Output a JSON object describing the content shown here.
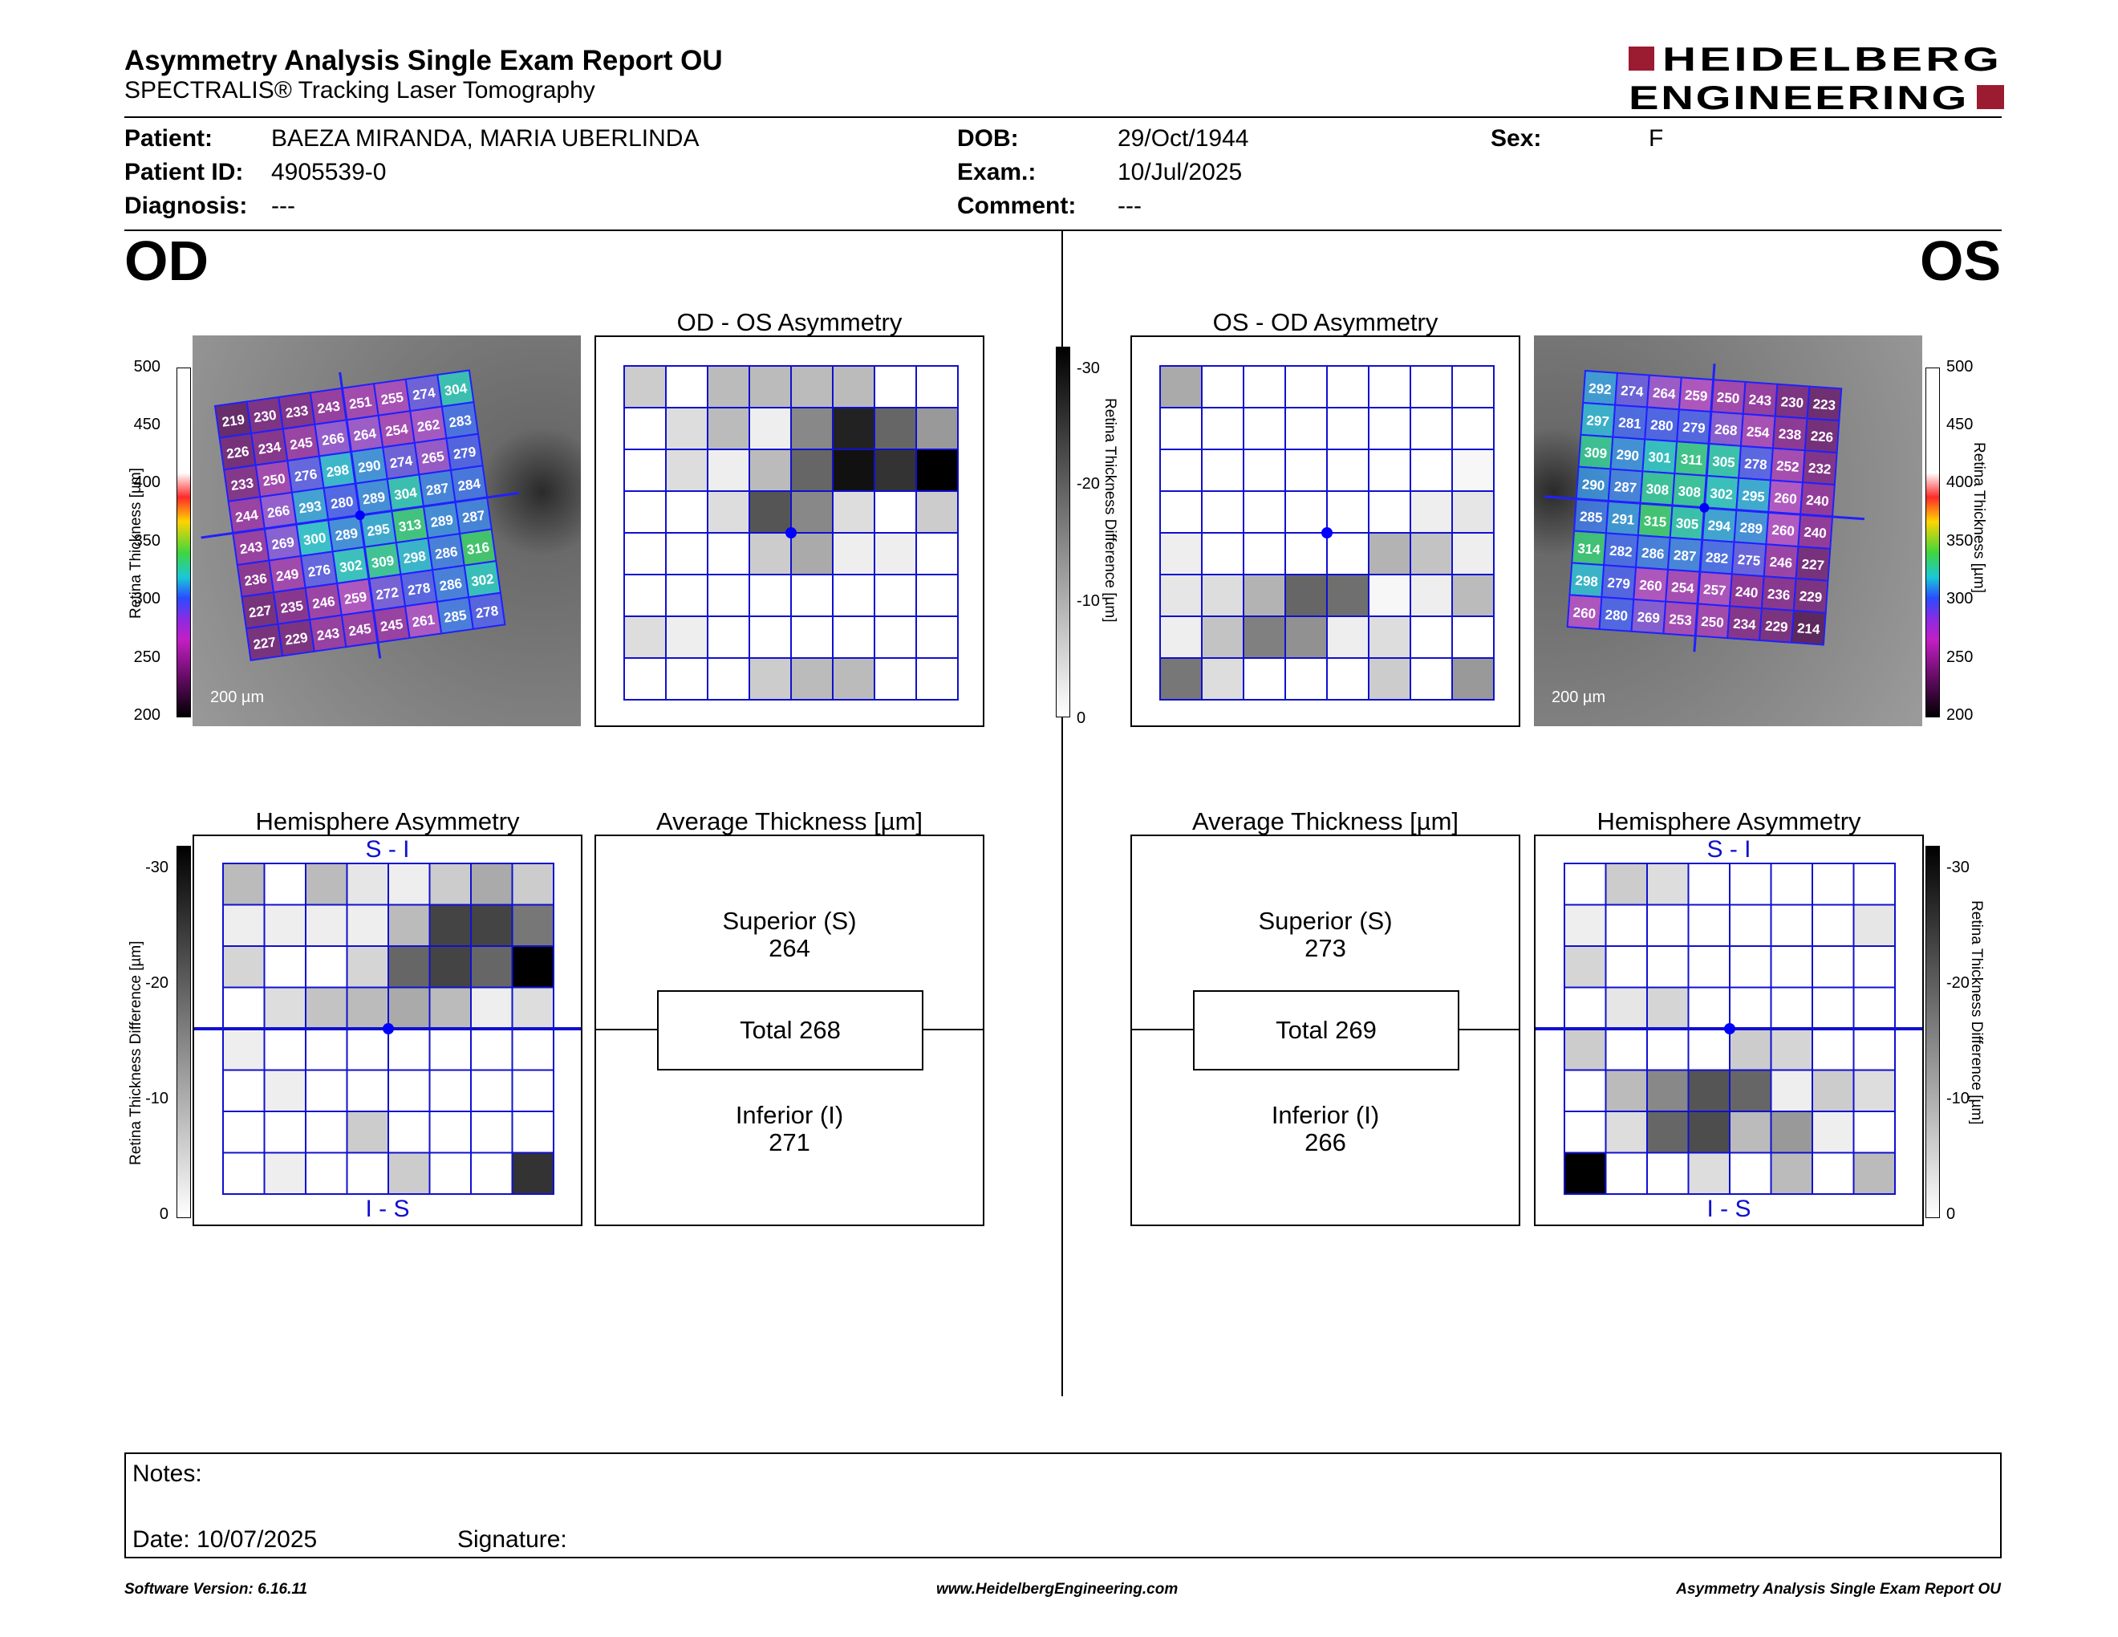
{
  "header": {
    "title": "Asymmetry Analysis Single Exam Report OU",
    "subtitle": "SPECTRALIS® Tracking Laser Tomography",
    "logo_line1": "HEIDELBERG",
    "logo_line2": "ENGINEERING",
    "brand_color": "#9b1b30"
  },
  "patient": {
    "patient_label": "Patient:",
    "patient_value": "BAEZA MIRANDA, MARIA UBERLINDA",
    "id_label": "Patient ID:",
    "id_value": "4905539-0",
    "diag_label": "Diagnosis:",
    "diag_value": "---",
    "dob_label": "DOB:",
    "dob_value": "29/Oct/1944",
    "exam_label": "Exam.:",
    "exam_value": "10/Jul/2025",
    "comment_label": "Comment:",
    "comment_value": "---",
    "sex_label": "Sex:",
    "sex_value": "F"
  },
  "eyes": {
    "left": "OD",
    "right": "OS"
  },
  "axes": {
    "thickness_label": "Retina Thickness [µm]",
    "thickness_ticks": [
      "500",
      "450",
      "400",
      "350",
      "300",
      "250",
      "200"
    ],
    "diff_label": "Retina Thickness Difference [µm]",
    "diff_ticks": [
      "-30",
      "-20",
      "-10",
      "0"
    ],
    "scale_bar": "200 µm"
  },
  "od": {
    "thickness_grid": [
      [
        "219",
        "230",
        "233",
        "243",
        "251",
        "255",
        "274",
        "304"
      ],
      [
        "226",
        "234",
        "245",
        "266",
        "264",
        "254",
        "262",
        "283"
      ],
      [
        "233",
        "250",
        "276",
        "298",
        "290",
        "274",
        "265",
        "279"
      ],
      [
        "244",
        "266",
        "293",
        "280",
        "289",
        "304",
        "287",
        "284"
      ],
      [
        "243",
        "269",
        "300",
        "289",
        "295",
        "313",
        "289",
        "287"
      ],
      [
        "236",
        "249",
        "276",
        "302",
        "309",
        "298",
        "286",
        "316"
      ],
      [
        "227",
        "235",
        "246",
        "259",
        "272",
        "278",
        "286",
        "302"
      ],
      [
        "227",
        "229",
        "243",
        "245",
        "245",
        "261",
        "285",
        "278"
      ]
    ],
    "asym_title": "OD - OS Asymmetry",
    "asym_grid": [
      [
        6,
        0,
        8,
        8,
        8,
        8,
        0,
        0
      ],
      [
        0,
        4,
        8,
        2,
        14,
        26,
        18,
        12
      ],
      [
        0,
        4,
        2,
        8,
        18,
        28,
        24,
        30
      ],
      [
        0,
        0,
        4,
        20,
        14,
        4,
        0,
        6
      ],
      [
        0,
        0,
        0,
        6,
        10,
        2,
        2,
        0
      ],
      [
        0,
        0,
        0,
        0,
        0,
        0,
        0,
        0
      ],
      [
        4,
        2,
        0,
        0,
        0,
        0,
        0,
        0
      ],
      [
        0,
        0,
        0,
        6,
        8,
        8,
        0,
        0
      ]
    ],
    "hemi_title": "Hemisphere Asymmetry",
    "hemi_top": "S - I",
    "hemi_bottom": "I - S",
    "hemi_grid": [
      [
        8,
        0,
        8,
        3,
        2,
        6,
        10,
        6
      ],
      [
        2,
        2,
        2,
        2,
        8,
        22,
        22,
        16
      ],
      [
        5,
        0,
        0,
        5,
        18,
        22,
        18,
        30
      ],
      [
        0,
        4,
        7,
        8,
        10,
        8,
        2,
        4
      ],
      [
        2,
        0,
        0,
        0,
        0,
        0,
        0,
        0
      ],
      [
        0,
        2,
        0,
        0,
        0,
        0,
        0,
        0
      ],
      [
        0,
        0,
        0,
        6,
        0,
        0,
        0,
        0
      ],
      [
        0,
        2,
        0,
        0,
        6,
        0,
        0,
        24
      ]
    ],
    "avg_title": "Average Thickness [µm]",
    "superior_label": "Superior (S)",
    "superior_value": "264",
    "total_label": "Total 268",
    "inferior_label": "Inferior (I)",
    "inferior_value": "271"
  },
  "os": {
    "thickness_grid": [
      [
        "292",
        "274",
        "264",
        "259",
        "250",
        "243",
        "230",
        "223"
      ],
      [
        "297",
        "281",
        "280",
        "279",
        "268",
        "254",
        "238",
        "226"
      ],
      [
        "309",
        "290",
        "301",
        "311",
        "305",
        "278",
        "252",
        "232"
      ],
      [
        "290",
        "287",
        "308",
        "308",
        "302",
        "295",
        "260",
        "240"
      ],
      [
        "285",
        "291",
        "315",
        "305",
        "294",
        "289",
        "260",
        "240"
      ],
      [
        "314",
        "282",
        "286",
        "287",
        "282",
        "275",
        "246",
        "227"
      ],
      [
        "298",
        "279",
        "260",
        "254",
        "257",
        "240",
        "236",
        "229"
      ],
      [
        "260",
        "280",
        "269",
        "253",
        "250",
        "234",
        "229",
        "214"
      ]
    ],
    "asym_title": "OS - OD Asymmetry",
    "asym_grid": [
      [
        10,
        0,
        0,
        0,
        0,
        0,
        0,
        0
      ],
      [
        0,
        0,
        0,
        0,
        0,
        0,
        0,
        0
      ],
      [
        0,
        0,
        0,
        0,
        0,
        0,
        0,
        1
      ],
      [
        0,
        0,
        0,
        0,
        0,
        0,
        2,
        3
      ],
      [
        2,
        0,
        0,
        0,
        0,
        9,
        7,
        2
      ],
      [
        3,
        4,
        9,
        18,
        17,
        1,
        2,
        8
      ],
      [
        2,
        7,
        15,
        13,
        2,
        4,
        0,
        0
      ],
      [
        16,
        4,
        0,
        0,
        0,
        6,
        0,
        12
      ]
    ],
    "hemi_title": "Hemisphere Asymmetry",
    "hemi_top": "S - I",
    "hemi_bottom": "I - S",
    "hemi_grid": [
      [
        0,
        6,
        4,
        0,
        0,
        0,
        0,
        0
      ],
      [
        2,
        0,
        0,
        0,
        0,
        0,
        0,
        3
      ],
      [
        5,
        0,
        0,
        0,
        0,
        0,
        0,
        0
      ],
      [
        0,
        3,
        5,
        0,
        0,
        0,
        0,
        0
      ],
      [
        6,
        0,
        0,
        0,
        6,
        5,
        0,
        0
      ],
      [
        0,
        8,
        14,
        20,
        18,
        2,
        6,
        4
      ],
      [
        0,
        4,
        18,
        21,
        8,
        12,
        2,
        0
      ],
      [
        30,
        0,
        0,
        4,
        0,
        8,
        0,
        8
      ]
    ],
    "avg_title": "Average Thickness [µm]",
    "superior_label": "Superior (S)",
    "superior_value": "273",
    "total_label": "Total 269",
    "inferior_label": "Inferior (I)",
    "inferior_value": "266"
  },
  "notes": {
    "notes_label": "Notes:",
    "date_label": "Date: 10/07/2025",
    "signature_label": "Signature:"
  },
  "footer": {
    "software": "Software Version: 6.16.11",
    "website": "www.HeidelbergEngineering.com",
    "report": "Asymmetry Analysis Single Exam Report OU"
  },
  "colors": {
    "grid_blue": "#1010d0",
    "fovea_dot": "#0000ff"
  }
}
